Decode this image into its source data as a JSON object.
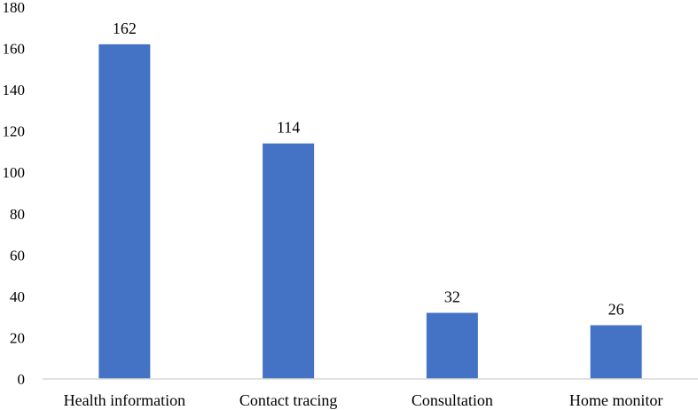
{
  "chart_data": {
    "type": "bar",
    "title": "",
    "xlabel": "",
    "ylabel": "",
    "categories": [
      "Health information",
      "Contact tracing",
      "Consultation",
      "Home monitor"
    ],
    "values": [
      162,
      114,
      32,
      26
    ],
    "data_labels": [
      "162",
      "114",
      "32",
      "26"
    ],
    "ylim": [
      0,
      180
    ],
    "yticks": [
      0,
      20,
      40,
      60,
      80,
      100,
      120,
      140,
      160,
      180
    ],
    "ytick_labels": [
      "0",
      "20",
      "40",
      "60",
      "80",
      "100",
      "120",
      "140",
      "160",
      "180"
    ],
    "grid": false,
    "legend": "none",
    "bar_color": "#4472C4",
    "axis_color": "#D9D9D9",
    "text_color": "#000000"
  }
}
